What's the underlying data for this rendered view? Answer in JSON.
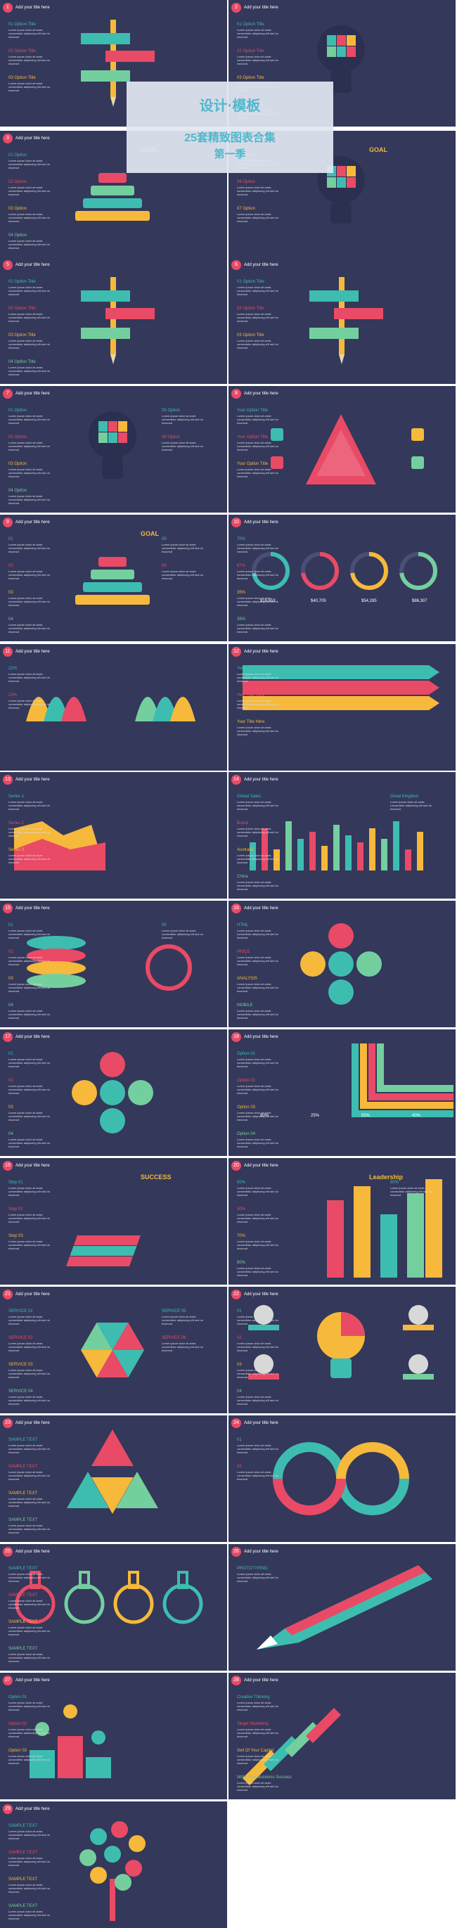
{
  "cover": {
    "logo_text": "设计·模板",
    "title_line1": "25套精致图表合集",
    "title_line2": "第一季"
  },
  "common": {
    "slide_title": "Add your title here",
    "sample_text": "Lorem ipsum dolor sit amet, consectetur adipiscing elit sed do eiusmod"
  },
  "colors": {
    "background": "#34385a",
    "teal": "#3dbdb0",
    "pink": "#e94a66",
    "yellow": "#f6b93b",
    "green": "#74cf9f"
  },
  "slides": [
    {
      "index": 1,
      "labels": [
        "01 Option Title",
        "02 Option Title",
        "03 Option Title"
      ]
    },
    {
      "index": 2,
      "labels": [
        "01 Option Title",
        "02 Option Title",
        "03 Option Title",
        "04 Option Title"
      ]
    },
    {
      "index": 3,
      "labels": [
        "01 Option",
        "02 Option",
        "03 Option",
        "04 Option"
      ],
      "extra": "GOAL"
    },
    {
      "index": 4,
      "labels": [
        "05 Option",
        "06 Option",
        "07 Option"
      ],
      "extra": "GOAL"
    },
    {
      "index": 5,
      "labels": [
        "01 Option Title",
        "02 Option Title",
        "03 Option Title",
        "04 Option Title"
      ]
    },
    {
      "index": 6,
      "labels": [
        "01 Option Title",
        "02 Option Title",
        "03 Option Title"
      ]
    },
    {
      "index": 7,
      "labels": [
        "01 Option",
        "02 Option",
        "03 Option",
        "04 Option",
        "05 Option",
        "06 Option"
      ]
    },
    {
      "index": 8,
      "labels": [
        "Your Option Title",
        "Your Option Title",
        "Your Option Title"
      ]
    },
    {
      "index": 9,
      "labels": [
        "01",
        "02",
        "03",
        "04",
        "05",
        "06"
      ],
      "extra": "GOAL"
    },
    {
      "index": 10,
      "labels": [
        "70%",
        "87%",
        "35%",
        "35%"
      ],
      "values": [
        "$18,653",
        "$40,705",
        "$54,285",
        "$86,307"
      ]
    },
    {
      "index": 11,
      "labels": [
        "22%",
        "22%"
      ]
    },
    {
      "index": 12,
      "labels": [
        "Your Title Here",
        "Your Title Here",
        "Your Title Here"
      ]
    },
    {
      "index": 13,
      "labels": [
        "Series 1",
        "Series 2",
        "Series 3"
      ]
    },
    {
      "index": 14,
      "labels": [
        "Global Sales",
        "Brand",
        "Australia",
        "China",
        "Great Kingdom"
      ]
    },
    {
      "index": 15,
      "labels": [
        "01",
        "02",
        "03",
        "04",
        "05"
      ]
    },
    {
      "index": 16,
      "labels": [
        "HTML",
        "PRICE",
        "ANALYSIS",
        "MOBILE"
      ]
    },
    {
      "index": 17,
      "labels": [
        "01",
        "02",
        "03",
        "04"
      ]
    },
    {
      "index": 18,
      "labels": [
        "Option 01",
        "Option 02",
        "Option 03",
        "Option 04"
      ],
      "values": [
        "80%",
        "25%",
        "55%",
        "40%"
      ]
    },
    {
      "index": 19,
      "labels": [
        "Step 01",
        "Step 02",
        "Step 03"
      ],
      "extra": "SUCCESS"
    },
    {
      "index": 20,
      "labels": [
        "50%",
        "30%",
        "70%",
        "80%",
        "90%"
      ],
      "extra": "Leadership"
    },
    {
      "index": 21,
      "labels": [
        "SERVICE 01",
        "SERVICE 02",
        "SERVICE 03",
        "SERVICE 04",
        "SERVICE 05",
        "SERVICE 06"
      ]
    },
    {
      "index": 22,
      "labels": [
        "01",
        "02",
        "03",
        "04"
      ]
    },
    {
      "index": 23,
      "labels": [
        "SAMPLE TEXT",
        "SAMPLE TEXT",
        "SAMPLE TEXT",
        "SAMPLE TEXT"
      ]
    },
    {
      "index": 24,
      "labels": [
        "01",
        "02"
      ]
    },
    {
      "index": 25,
      "labels": [
        "SAMPLE TEXT",
        "SAMPLE TEXT",
        "SAMPLE TEXT",
        "SAMPLE TEXT"
      ]
    },
    {
      "index": 26,
      "labels": [
        "PROTOTYPING"
      ]
    },
    {
      "index": 27,
      "labels": [
        "Option 01",
        "Option 02",
        "Option 03"
      ]
    },
    {
      "index": 28,
      "labels": [
        "Creative Thinking",
        "Target Marketing",
        "Sell Of Your Capital",
        "Write Your Business Success"
      ]
    },
    {
      "index": 29,
      "labels": [
        "SAMPLE TEXT",
        "SAMPLE TEXT",
        "SAMPLE TEXT",
        "SAMPLE TEXT"
      ]
    }
  ]
}
